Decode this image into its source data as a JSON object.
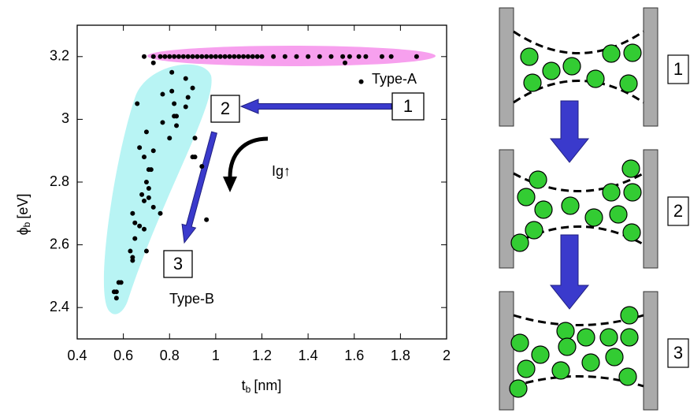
{
  "chart_data": {
    "type": "scatter",
    "x_label": {
      "symbol": "t",
      "subscript": "b",
      "unit": "[nm]"
    },
    "y_label": {
      "symbol": "ϕ",
      "subscript": "b",
      "unit": "[eV]"
    },
    "xlim": [
      0.4,
      2
    ],
    "xticks": [
      0.4,
      0.6,
      0.8,
      1,
      1.2,
      1.4,
      1.6,
      1.8,
      2
    ],
    "ylim": [
      2.3,
      3.3
    ],
    "yticks": [
      2.4,
      2.6,
      2.8,
      3,
      3.2
    ],
    "color": "#000000",
    "x": [
      0.69,
      0.73,
      0.76,
      0.78,
      0.8,
      0.82,
      0.84,
      0.86,
      0.88,
      0.9,
      0.92,
      0.94,
      0.96,
      0.98,
      1.0,
      1.02,
      1.04,
      1.06,
      1.08,
      1.1,
      1.12,
      1.14,
      1.16,
      1.18,
      1.2,
      1.25,
      1.3,
      1.35,
      1.4,
      1.45,
      1.5,
      1.55,
      1.58,
      1.62,
      1.65,
      1.72,
      1.76,
      1.87,
      0.73,
      1.56,
      1.63,
      0.81,
      0.87,
      0.9,
      0.77,
      0.81,
      0.88,
      0.66,
      0.82,
      0.87,
      0.82,
      0.83,
      0.77,
      0.7,
      0.83,
      0.8,
      0.91,
      0.67,
      0.73,
      0.9,
      0.91,
      0.69,
      0.71,
      0.72,
      0.94,
      0.7,
      0.71,
      0.68,
      0.69,
      0.71,
      0.76,
      0.73,
      0.64,
      0.96,
      0.65,
      0.67,
      0.69,
      0.65,
      0.63,
      0.64,
      0.7,
      0.64,
      0.59,
      0.58,
      0.56,
      0.57,
      0.57
    ],
    "y": [
      3.2,
      3.2,
      3.2,
      3.2,
      3.2,
      3.2,
      3.2,
      3.2,
      3.2,
      3.2,
      3.2,
      3.2,
      3.2,
      3.2,
      3.2,
      3.2,
      3.2,
      3.2,
      3.2,
      3.2,
      3.2,
      3.2,
      3.2,
      3.2,
      3.2,
      3.2,
      3.2,
      3.2,
      3.2,
      3.2,
      3.2,
      3.2,
      3.2,
      3.2,
      3.2,
      3.2,
      3.2,
      3.2,
      3.18,
      3.18,
      3.12,
      3.15,
      3.13,
      3.1,
      3.08,
      3.09,
      3.07,
      3.05,
      3.05,
      3.04,
      3.01,
      3.01,
      2.99,
      2.96,
      2.98,
      2.94,
      2.94,
      2.91,
      2.9,
      2.88,
      2.88,
      2.88,
      2.84,
      2.84,
      2.85,
      2.8,
      2.78,
      2.76,
      2.74,
      2.75,
      2.7,
      2.72,
      2.7,
      2.68,
      2.67,
      2.66,
      2.65,
      2.62,
      2.58,
      2.56,
      2.58,
      2.55,
      2.48,
      2.48,
      2.45,
      2.45,
      2.43
    ],
    "annotations": [
      "Type-A",
      "Type-B",
      "Ig↑"
    ],
    "step_labels": [
      "1",
      "2",
      "3"
    ]
  },
  "diagram": {
    "panel_labels": [
      "1",
      "2",
      "3"
    ]
  }
}
